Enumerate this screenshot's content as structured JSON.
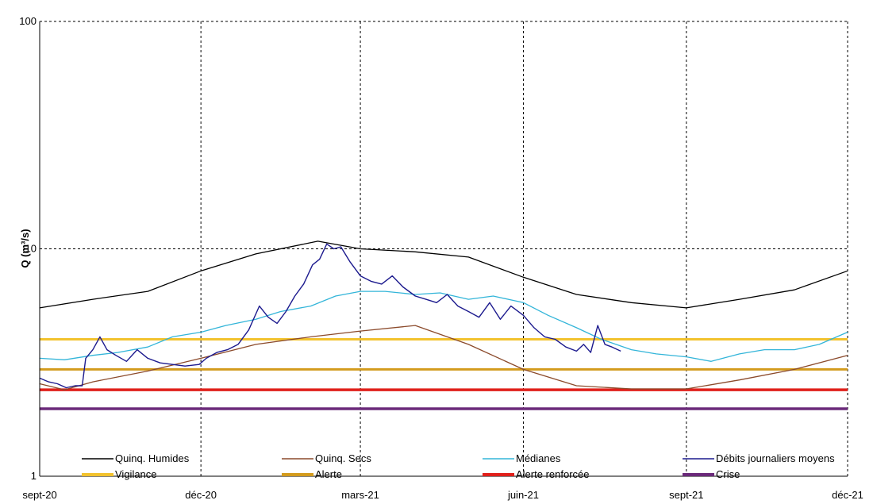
{
  "chart_data": {
    "type": "line",
    "y_scale": "log",
    "ylabel": "Q (m³/s)",
    "ylim": [
      1,
      100
    ],
    "y_ticks": [
      {
        "value": 1,
        "label": "1"
      },
      {
        "value": 10,
        "label": "10"
      },
      {
        "value": 100,
        "label": "100"
      }
    ],
    "xlim": [
      "2020-09-01",
      "2021-12-01"
    ],
    "x_ticks": [
      {
        "date": "2020-09-01",
        "label": "sept-20"
      },
      {
        "date": "2020-12-01",
        "label": "déc-20"
      },
      {
        "date": "2021-03-01",
        "label": "mars-21"
      },
      {
        "date": "2021-06-01",
        "label": "juin-21"
      },
      {
        "date": "2021-09-01",
        "label": "sept-21"
      },
      {
        "date": "2021-12-01",
        "label": "déc-21"
      }
    ],
    "grid": true,
    "legend_position": "bottom",
    "series": [
      {
        "name": "Quinq. Humides",
        "color": "#000000",
        "width": 1.3,
        "points": [
          [
            "2020-09-01",
            5.5
          ],
          [
            "2020-10-01",
            6.0
          ],
          [
            "2020-11-01",
            6.5
          ],
          [
            "2020-12-01",
            8.0
          ],
          [
            "2021-01-01",
            9.5
          ],
          [
            "2021-02-05",
            10.8
          ],
          [
            "2021-03-01",
            10.0
          ],
          [
            "2021-04-01",
            9.7
          ],
          [
            "2021-05-01",
            9.2
          ],
          [
            "2021-06-01",
            7.5
          ],
          [
            "2021-07-01",
            6.3
          ],
          [
            "2021-08-01",
            5.8
          ],
          [
            "2021-09-01",
            5.5
          ],
          [
            "2021-10-01",
            6.0
          ],
          [
            "2021-11-01",
            6.6
          ],
          [
            "2021-12-01",
            8.0
          ]
        ]
      },
      {
        "name": "Quinq. Secs",
        "color": "#8b4a2b",
        "width": 1.3,
        "points": [
          [
            "2020-09-01",
            2.55
          ],
          [
            "2020-09-15",
            2.4
          ],
          [
            "2020-10-01",
            2.6
          ],
          [
            "2020-11-01",
            2.9
          ],
          [
            "2020-12-01",
            3.3
          ],
          [
            "2021-01-01",
            3.8
          ],
          [
            "2021-02-01",
            4.1
          ],
          [
            "2021-03-01",
            4.35
          ],
          [
            "2021-04-01",
            4.6
          ],
          [
            "2021-05-01",
            3.8
          ],
          [
            "2021-06-01",
            2.95
          ],
          [
            "2021-07-01",
            2.5
          ],
          [
            "2021-08-01",
            2.42
          ],
          [
            "2021-09-01",
            2.42
          ],
          [
            "2021-10-01",
            2.65
          ],
          [
            "2021-11-01",
            2.95
          ],
          [
            "2021-12-01",
            3.4
          ]
        ]
      },
      {
        "name": "Médianes",
        "color": "#33b5d9",
        "width": 1.3,
        "points": [
          [
            "2020-09-01",
            3.3
          ],
          [
            "2020-09-15",
            3.25
          ],
          [
            "2020-10-01",
            3.4
          ],
          [
            "2020-10-15",
            3.5
          ],
          [
            "2020-11-01",
            3.7
          ],
          [
            "2020-11-15",
            4.1
          ],
          [
            "2020-12-01",
            4.3
          ],
          [
            "2020-12-15",
            4.6
          ],
          [
            "2021-01-01",
            4.9
          ],
          [
            "2021-01-15",
            5.3
          ],
          [
            "2021-02-01",
            5.6
          ],
          [
            "2021-02-15",
            6.2
          ],
          [
            "2021-03-01",
            6.5
          ],
          [
            "2021-03-15",
            6.5
          ],
          [
            "2021-04-01",
            6.3
          ],
          [
            "2021-04-15",
            6.4
          ],
          [
            "2021-05-01",
            6.0
          ],
          [
            "2021-05-15",
            6.2
          ],
          [
            "2021-06-01",
            5.8
          ],
          [
            "2021-06-15",
            5.1
          ],
          [
            "2021-07-01",
            4.5
          ],
          [
            "2021-07-15",
            4.0
          ],
          [
            "2021-08-01",
            3.6
          ],
          [
            "2021-08-15",
            3.45
          ],
          [
            "2021-09-01",
            3.35
          ],
          [
            "2021-09-15",
            3.2
          ],
          [
            "2021-10-01",
            3.45
          ],
          [
            "2021-10-15",
            3.6
          ],
          [
            "2021-11-01",
            3.6
          ],
          [
            "2021-11-15",
            3.8
          ],
          [
            "2021-12-01",
            4.3
          ]
        ]
      },
      {
        "name": "Débits journaliers moyens",
        "color": "#1c1a8e",
        "width": 1.4,
        "points": [
          [
            "2020-09-01",
            2.7
          ],
          [
            "2020-09-06",
            2.6
          ],
          [
            "2020-09-11",
            2.55
          ],
          [
            "2020-09-16",
            2.45
          ],
          [
            "2020-09-21",
            2.5
          ],
          [
            "2020-09-25",
            2.5
          ],
          [
            "2020-09-27",
            3.3
          ],
          [
            "2020-10-01",
            3.6
          ],
          [
            "2020-10-05",
            4.1
          ],
          [
            "2020-10-09",
            3.6
          ],
          [
            "2020-10-14",
            3.4
          ],
          [
            "2020-10-20",
            3.2
          ],
          [
            "2020-10-26",
            3.6
          ],
          [
            "2020-11-01",
            3.3
          ],
          [
            "2020-11-08",
            3.15
          ],
          [
            "2020-11-15",
            3.1
          ],
          [
            "2020-11-22",
            3.05
          ],
          [
            "2020-11-30",
            3.1
          ],
          [
            "2020-12-04",
            3.3
          ],
          [
            "2020-12-10",
            3.5
          ],
          [
            "2020-12-16",
            3.6
          ],
          [
            "2020-12-22",
            3.8
          ],
          [
            "2020-12-28",
            4.4
          ],
          [
            "2021-01-03",
            5.6
          ],
          [
            "2021-01-08",
            5.0
          ],
          [
            "2021-01-13",
            4.7
          ],
          [
            "2021-01-18",
            5.3
          ],
          [
            "2021-01-23",
            6.2
          ],
          [
            "2021-01-28",
            7.0
          ],
          [
            "2021-02-02",
            8.5
          ],
          [
            "2021-02-06",
            9.0
          ],
          [
            "2021-02-10",
            10.5
          ],
          [
            "2021-02-14",
            10.0
          ],
          [
            "2021-02-18",
            10.2
          ],
          [
            "2021-02-23",
            8.8
          ],
          [
            "2021-03-01",
            7.6
          ],
          [
            "2021-03-07",
            7.2
          ],
          [
            "2021-03-13",
            7.0
          ],
          [
            "2021-03-19",
            7.6
          ],
          [
            "2021-03-25",
            6.8
          ],
          [
            "2021-04-01",
            6.2
          ],
          [
            "2021-04-07",
            6.0
          ],
          [
            "2021-04-13",
            5.8
          ],
          [
            "2021-04-19",
            6.3
          ],
          [
            "2021-04-25",
            5.6
          ],
          [
            "2021-05-01",
            5.3
          ],
          [
            "2021-05-07",
            5.0
          ],
          [
            "2021-05-13",
            5.8
          ],
          [
            "2021-05-19",
            4.9
          ],
          [
            "2021-05-25",
            5.6
          ],
          [
            "2021-06-01",
            5.1
          ],
          [
            "2021-06-07",
            4.5
          ],
          [
            "2021-06-13",
            4.1
          ],
          [
            "2021-06-19",
            4.0
          ],
          [
            "2021-06-25",
            3.7
          ],
          [
            "2021-07-01",
            3.55
          ],
          [
            "2021-07-05",
            3.8
          ],
          [
            "2021-07-09",
            3.5
          ],
          [
            "2021-07-13",
            4.6
          ],
          [
            "2021-07-17",
            3.8
          ],
          [
            "2021-07-21",
            3.7
          ],
          [
            "2021-07-26",
            3.55
          ]
        ]
      },
      {
        "name": "Vigilance",
        "color": "#f2c22e",
        "width": 3,
        "points": [
          [
            "2020-09-01",
            4.0
          ],
          [
            "2021-12-01",
            4.0
          ]
        ]
      },
      {
        "name": "Alerte",
        "color": "#d39b1d",
        "width": 3,
        "points": [
          [
            "2020-09-01",
            2.95
          ],
          [
            "2021-12-01",
            2.95
          ]
        ]
      },
      {
        "name": "Alerte renforcée",
        "color": "#e0201b",
        "width": 3.5,
        "points": [
          [
            "2020-09-01",
            2.4
          ],
          [
            "2021-12-01",
            2.4
          ]
        ]
      },
      {
        "name": "Crise",
        "color": "#6b2a7a",
        "width": 3.5,
        "points": [
          [
            "2020-09-01",
            1.98
          ],
          [
            "2021-12-01",
            1.98
          ]
        ]
      }
    ]
  }
}
